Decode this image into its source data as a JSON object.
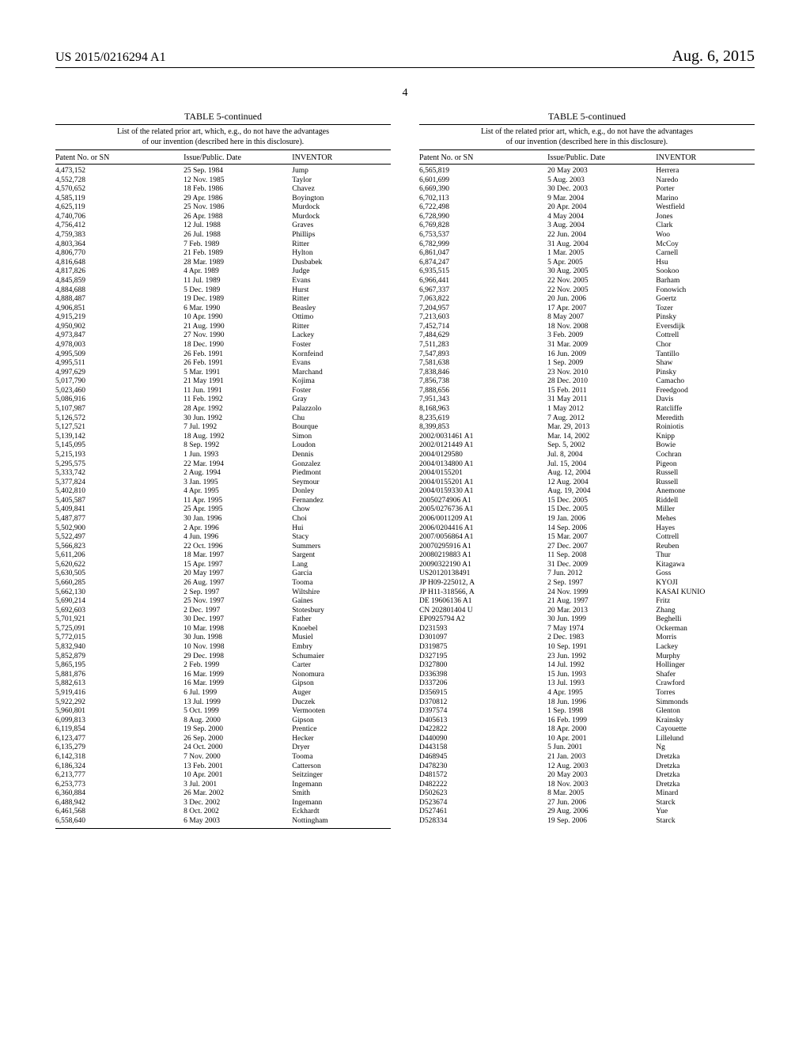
{
  "header": {
    "publication_number": "US 2015/0216294 A1",
    "publication_date": "Aug. 6, 2015"
  },
  "page_number": "4",
  "table_title": "TABLE 5-continued",
  "table_caption_line1": "List of the related prior art, which, e.g., do not have the advantages",
  "table_caption_line2": "of our invention (described here in this disclosure).",
  "columns": [
    "Patent No. or SN",
    "Issue/Public. Date",
    "INVENTOR"
  ],
  "left_rows": [
    [
      "4,473,152",
      "25 Sep. 1984",
      "Jump"
    ],
    [
      "4,552,728",
      "12 Nov. 1985",
      "Taylor"
    ],
    [
      "4,570,652",
      "18 Feb. 1986",
      "Chavez"
    ],
    [
      "4,585,119",
      "29 Apr. 1986",
      "Boyington"
    ],
    [
      "4,625,119",
      "25 Nov. 1986",
      "Murdock"
    ],
    [
      "4,740,706",
      "26 Apr. 1988",
      "Murdock"
    ],
    [
      "4,756,412",
      "12 Jul. 1988",
      "Graves"
    ],
    [
      "4,759,383",
      "26 Jul. 1988",
      "Phillips"
    ],
    [
      "4,803,364",
      "7 Feb. 1989",
      "Ritter"
    ],
    [
      "4,806,770",
      "21 Feb. 1989",
      "Hylton"
    ],
    [
      "4,816,648",
      "28 Mar. 1989",
      "Dusbabek"
    ],
    [
      "4,817,826",
      "4 Apr. 1989",
      "Judge"
    ],
    [
      "4,845,859",
      "11 Jul. 1989",
      "Evans"
    ],
    [
      "4,884,688",
      "5 Dec. 1989",
      "Hurst"
    ],
    [
      "4,888,487",
      "19 Dec. 1989",
      "Ritter"
    ],
    [
      "4,906,851",
      "6 Mar. 1990",
      "Beasley"
    ],
    [
      "4,915,219",
      "10 Apr. 1990",
      "Ottimo"
    ],
    [
      "4,950,902",
      "21 Aug. 1990",
      "Ritter"
    ],
    [
      "4,973,847",
      "27 Nov. 1990",
      "Lackey"
    ],
    [
      "4,978,003",
      "18 Dec. 1990",
      "Foster"
    ],
    [
      "4,995,509",
      "26 Feb. 1991",
      "Kornfeind"
    ],
    [
      "4,995,511",
      "26 Feb. 1991",
      "Evans"
    ],
    [
      "4,997,629",
      "5 Mar. 1991",
      "Marchand"
    ],
    [
      "5,017,790",
      "21 May 1991",
      "Kojima"
    ],
    [
      "5,023,460",
      "11 Jun. 1991",
      "Foster"
    ],
    [
      "5,086,916",
      "11 Feb. 1992",
      "Gray"
    ],
    [
      "5,107,987",
      "28 Apr. 1992",
      "Palazzolo"
    ],
    [
      "5,126,572",
      "30 Jun. 1992",
      "Chu"
    ],
    [
      "5,127,521",
      "7 Jul. 1992",
      "Bourque"
    ],
    [
      "5,139,142",
      "18 Aug. 1992",
      "Simon"
    ],
    [
      "5,145,095",
      "8 Sep. 1992",
      "Loudon"
    ],
    [
      "5,215,193",
      "1 Jun. 1993",
      "Dennis"
    ],
    [
      "5,295,575",
      "22 Mar. 1994",
      "Gonzalez"
    ],
    [
      "5,333,742",
      "2 Aug. 1994",
      "Piedmont"
    ],
    [
      "5,377,824",
      "3 Jan. 1995",
      "Seymour"
    ],
    [
      "5,402,810",
      "4 Apr. 1995",
      "Donley"
    ],
    [
      "5,405,587",
      "11 Apr. 1995",
      "Fernandez"
    ],
    [
      "5,409,841",
      "25 Apr. 1995",
      "Chow"
    ],
    [
      "5,487,877",
      "30 Jan. 1996",
      "Choi"
    ],
    [
      "5,502,900",
      "2 Apr. 1996",
      "Hui"
    ],
    [
      "5,522,497",
      "4 Jun. 1996",
      "Stacy"
    ],
    [
      "5,566,823",
      "22 Oct. 1996",
      "Summers"
    ],
    [
      "5,611,206",
      "18 Mar. 1997",
      "Sargent"
    ],
    [
      "5,620,622",
      "15 Apr. 1997",
      "Lang"
    ],
    [
      "5,630,505",
      "20 May 1997",
      "Garcia"
    ],
    [
      "5,660,285",
      "26 Aug. 1997",
      "Tooma"
    ],
    [
      "5,662,130",
      "2 Sep. 1997",
      "Wiltshire"
    ],
    [
      "5,690,214",
      "25 Nov. 1997",
      "Gaines"
    ],
    [
      "5,692,603",
      "2 Dec. 1997",
      "Stotesbury"
    ],
    [
      "5,701,921",
      "30 Dec. 1997",
      "Father"
    ],
    [
      "5,725,091",
      "10 Mar. 1998",
      "Knoebel"
    ],
    [
      "5,772,015",
      "30 Jun. 1998",
      "Musiel"
    ],
    [
      "5,832,940",
      "10 Nov. 1998",
      "Embry"
    ],
    [
      "5,852,879",
      "29 Dec. 1998",
      "Schumaier"
    ],
    [
      "5,865,195",
      "2 Feb. 1999",
      "Carter"
    ],
    [
      "5,881,876",
      "16 Mar. 1999",
      "Nonomura"
    ],
    [
      "5,882,613",
      "16 Mar. 1999",
      "Gipson"
    ],
    [
      "5,919,416",
      "6 Jul. 1999",
      "Auger"
    ],
    [
      "5,922,292",
      "13 Jul. 1999",
      "Duczek"
    ],
    [
      "5,960,801",
      "5 Oct. 1999",
      "Vermooten"
    ],
    [
      "6,099,813",
      "8 Aug. 2000",
      "Gipson"
    ],
    [
      "6,119,854",
      "19 Sep. 2000",
      "Prentice"
    ],
    [
      "6,123,477",
      "26 Sep. 2000",
      "Hecker"
    ],
    [
      "6,135,279",
      "24 Oct. 2000",
      "Dryer"
    ],
    [
      "6,142,318",
      "7 Nov. 2000",
      "Tooma"
    ],
    [
      "6,186,324",
      "13 Feb. 2001",
      "Catterson"
    ],
    [
      "6,213,777",
      "10 Apr. 2001",
      "Seitzinger"
    ],
    [
      "6,253,773",
      "3 Jul. 2001",
      "Ingemann"
    ],
    [
      "6,360,884",
      "26 Mar. 2002",
      "Smith"
    ],
    [
      "6,488,942",
      "3 Dec. 2002",
      "Ingemann"
    ],
    [
      "6,461,568",
      "8 Oct. 2002",
      "Eckhardt"
    ],
    [
      "6,558,640",
      "6 May 2003",
      "Nottingham"
    ]
  ],
  "right_rows": [
    [
      "6,565,819",
      "20 May 2003",
      "Herrera"
    ],
    [
      "6,601,699",
      "5 Aug. 2003",
      "Naredo"
    ],
    [
      "6,669,390",
      "30 Dec. 2003",
      "Porter"
    ],
    [
      "6,702,113",
      "9 Mar. 2004",
      "Marino"
    ],
    [
      "6,722,498",
      "20 Apr. 2004",
      "Westfield"
    ],
    [
      "6,728,990",
      "4 May 2004",
      "Jones"
    ],
    [
      "6,769,828",
      "3 Aug. 2004",
      "Clark"
    ],
    [
      "6,753,537",
      "22 Jun. 2004",
      "Woo"
    ],
    [
      "6,782,999",
      "31 Aug. 2004",
      "McCoy"
    ],
    [
      "6,861,047",
      "1 Mar. 2005",
      "Carnell"
    ],
    [
      "6,874,247",
      "5 Apr. 2005",
      "Hsu"
    ],
    [
      "6,935,515",
      "30 Aug. 2005",
      "Sookoo"
    ],
    [
      "6,966,441",
      "22 Nov. 2005",
      "Barham"
    ],
    [
      "6,967,337",
      "22 Nov. 2005",
      "Fonowich"
    ],
    [
      "7,063,822",
      "20 Jun. 2006",
      "Goertz"
    ],
    [
      "7,204,957",
      "17 Apr. 2007",
      "Tozer"
    ],
    [
      "7,213,603",
      "8 May 2007",
      "Pinsky"
    ],
    [
      "7,452,714",
      "18 Nov. 2008",
      "Eversdijk"
    ],
    [
      "7,484,629",
      "3 Feb. 2009",
      "Cottrell"
    ],
    [
      "7,511,283",
      "31 Mar. 2009",
      "Chor"
    ],
    [
      "7,547,893",
      "16 Jun. 2009",
      "Tantillo"
    ],
    [
      "7,581,638",
      "1 Sep. 2009",
      "Shaw"
    ],
    [
      "7,838,846",
      "23 Nov. 2010",
      "Pinsky"
    ],
    [
      "7,856,738",
      "28 Dec. 2010",
      "Camacho"
    ],
    [
      "7,888,656",
      "15 Feb. 2011",
      "Freedgood"
    ],
    [
      "7,951,343",
      "31 May 2011",
      "Davis"
    ],
    [
      "8,168,963",
      "1 May 2012",
      "Ratcliffe"
    ],
    [
      "8,235,619",
      "7 Aug. 2012",
      "Meredith"
    ],
    [
      "8,399,853",
      "Mar. 29, 2013",
      "Roiniotis"
    ],
    [
      "2002/0031461 A1",
      "Mar. 14, 2002",
      "Knipp"
    ],
    [
      "2002/0121449 A1",
      "Sep. 5, 2002",
      "Bowie"
    ],
    [
      "2004/0129580",
      "Jul. 8, 2004",
      "Cochran"
    ],
    [
      "2004/0134800 A1",
      "Jul. 15, 2004",
      "Pigeon"
    ],
    [
      "2004/0155201",
      "Aug. 12, 2004",
      "Russell"
    ],
    [
      "2004/0155201 A1",
      "12 Aug. 2004",
      "Russell"
    ],
    [
      "2004/0159330 A1",
      "Aug. 19, 2004",
      "Anemone"
    ],
    [
      "20050274906 A1",
      "15 Dec. 2005",
      "Riddell"
    ],
    [
      "2005/0276736 A1",
      "15 Dec. 2005",
      "Miller"
    ],
    [
      "2006/0011209 A1",
      "19 Jan. 2006",
      "Mehes"
    ],
    [
      "2006/0204416 A1",
      "14 Sep. 2006",
      "Hayes"
    ],
    [
      "2007/0056864 A1",
      "15 Mar. 2007",
      "Cottrell"
    ],
    [
      "20070295916 A1",
      "27 Dec. 2007",
      "Reuben"
    ],
    [
      "20080219883 A1",
      "11 Sep. 2008",
      "Thur"
    ],
    [
      "20090322190 A1",
      "31 Dec. 2009",
      "Kitagawa"
    ],
    [
      "US20120138491",
      "7 Jun. 2012",
      "Goss"
    ],
    [
      "JP H09-225012, A",
      "2 Sep. 1997",
      "KYOJI"
    ],
    [
      "JP H11-318566, A",
      "24 Nov. 1999",
      "KASAI KUNIO"
    ],
    [
      "DE 19606136 A1",
      "21 Aug. 1997",
      "Fritz"
    ],
    [
      "CN 202801404 U",
      "20 Mar. 2013",
      "Zhang"
    ],
    [
      "EP0925794 A2",
      "30 Jun. 1999",
      "Beghelli"
    ],
    [
      "D231593",
      "7 May 1974",
      "Ockerman"
    ],
    [
      "D301097",
      "2 Dec. 1983",
      "Morris"
    ],
    [
      "D319875",
      "10 Sep. 1991",
      "Lackey"
    ],
    [
      "D327195",
      "23 Jun. 1992",
      "Murphy"
    ],
    [
      "D327800",
      "14 Jul. 1992",
      "Hollinger"
    ],
    [
      "D336398",
      "15 Jun. 1993",
      "Shafer"
    ],
    [
      "D337206",
      "13 Jul. 1993",
      "Crawford"
    ],
    [
      "D356915",
      "4 Apr. 1995",
      "Torres"
    ],
    [
      "D370812",
      "18 Jun. 1996",
      "Simmonds"
    ],
    [
      "D397574",
      "1 Sep. 1998",
      "Glenton"
    ],
    [
      "D405613",
      "16 Feb. 1999",
      "Krainsky"
    ],
    [
      "D422822",
      "18 Apr. 2000",
      "Cayouette"
    ],
    [
      "D440090",
      "10 Apr. 2001",
      "Lillelund"
    ],
    [
      "D443158",
      "5 Jun. 2001",
      "Ng"
    ],
    [
      "D468945",
      "21 Jan. 2003",
      "Dretzka"
    ],
    [
      "D478230",
      "12 Aug. 2003",
      "Dretzka"
    ],
    [
      "D481572",
      "20 May 2003",
      "Dretzka"
    ],
    [
      "D482222",
      "18 Nov. 2003",
      "Dretzka"
    ],
    [
      "D502623",
      "8 Mar. 2005",
      "Minard"
    ],
    [
      "D523674",
      "27 Jun. 2006",
      "Starck"
    ],
    [
      "D527461",
      "29 Aug. 2006",
      "Yue"
    ],
    [
      "D528334",
      "19 Sep. 2006",
      "Starck"
    ]
  ]
}
